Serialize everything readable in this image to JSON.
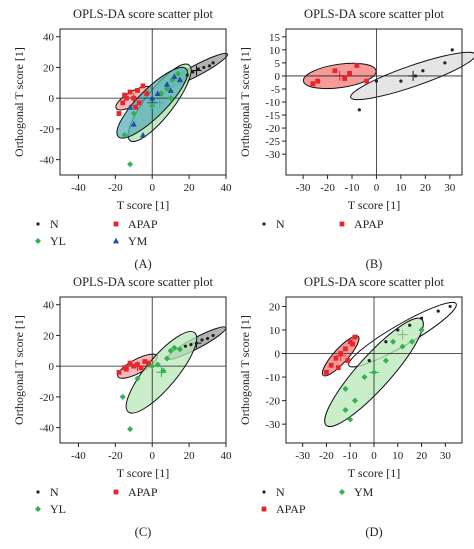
{
  "chart_data": [
    {
      "panel_label": "(A)",
      "type": "scatter",
      "title": "OPLS-DA score scatter plot",
      "xlabel": "T score [1]",
      "ylabel": "Orthogonal T score [1]",
      "xlim": [
        -50,
        40
      ],
      "ylim": [
        -50,
        45
      ],
      "xticks": [
        -40,
        -20,
        0,
        20,
        40
      ],
      "yticks": [
        -40,
        -20,
        0,
        20,
        40
      ],
      "legend": [
        "N",
        "APAP",
        "YL",
        "YM"
      ],
      "series": [
        {
          "name": "N",
          "color": "#222222",
          "marker": "dot",
          "points": [
            [
              19,
              15
            ],
            [
              22,
              17
            ],
            [
              25,
              19
            ],
            [
              28,
              20
            ],
            [
              31,
              21
            ],
            [
              33,
              23
            ]
          ],
          "ellipse": {
            "cx": 24,
            "cy": 18,
            "rx": 19,
            "ry": 3.5,
            "angle": 28,
            "fill": "#9a9a9a"
          }
        },
        {
          "name": "APAP",
          "color": "#e8262a",
          "marker": "square",
          "points": [
            [
              -18,
              -10
            ],
            [
              -16,
              -3
            ],
            [
              -14,
              0
            ],
            [
              -12,
              4
            ],
            [
              -10,
              0
            ],
            [
              -8,
              5
            ],
            [
              -7,
              -3
            ],
            [
              -5,
              8
            ],
            [
              -3,
              3
            ],
            [
              -15,
              2
            ],
            [
              -9,
              -6
            ]
          ],
          "ellipse": {
            "cx": -10,
            "cy": 0,
            "rx": 11,
            "ry": 4.5,
            "angle": 30,
            "fill": "#f8a0a0"
          }
        },
        {
          "name": "YL",
          "color": "#2fb34a",
          "marker": "diamond",
          "points": [
            [
              -15,
              -24
            ],
            [
              -12,
              -43
            ],
            [
              -10,
              -10
            ],
            [
              0,
              -5
            ],
            [
              5,
              3
            ],
            [
              8,
              6
            ],
            [
              11,
              12
            ],
            [
              14,
              16
            ],
            [
              10,
              0
            ]
          ],
          "ellipse": {
            "cx": 4,
            "cy": -3,
            "rx": 26,
            "ry": 9,
            "angle": 52,
            "fill": "#a8e0a8"
          }
        },
        {
          "name": "YM",
          "color": "#1f4ea3",
          "marker": "triangle",
          "points": [
            [
              -12,
              -6
            ],
            [
              -10,
              -17
            ],
            [
              -5,
              -24
            ],
            [
              0,
              0
            ],
            [
              3,
              3
            ],
            [
              8,
              9
            ],
            [
              10,
              5
            ],
            [
              12,
              14
            ],
            [
              15,
              12
            ]
          ],
          "ellipse": {
            "cx": 0,
            "cy": -3,
            "rx": 26,
            "ry": 9,
            "angle": 45,
            "fill": "#5ab0ba"
          }
        }
      ]
    },
    {
      "panel_label": "(B)",
      "type": "scatter",
      "title": "OPLS-DA score scatter plot",
      "xlabel": "T score [1]",
      "ylabel": "Orthogonal T score [1]",
      "xlim": [
        -37,
        35
      ],
      "ylim": [
        -38,
        18
      ],
      "xticks": [
        -30,
        -20,
        -10,
        0,
        10,
        20,
        30
      ],
      "yticks": [
        -30,
        -25,
        -20,
        -15,
        -10,
        -5,
        0,
        5,
        10,
        15
      ],
      "legend": [
        "N",
        "APAP"
      ],
      "series": [
        {
          "name": "N",
          "color": "#222222",
          "marker": "dot",
          "points": [
            [
              -7,
              -13
            ],
            [
              0,
              -2
            ],
            [
              10,
              -2
            ],
            [
              16,
              0
            ],
            [
              19,
              2
            ],
            [
              28,
              5
            ],
            [
              31,
              10
            ]
          ],
          "ellipse": {
            "cx": 15,
            "cy": 0,
            "rx": 27,
            "ry": 4,
            "angle": 19,
            "fill": "#dcdcdc"
          }
        },
        {
          "name": "APAP",
          "color": "#e8262a",
          "marker": "square",
          "points": [
            [
              -26,
              -3
            ],
            [
              -24,
              -2
            ],
            [
              -17,
              2
            ],
            [
              -13,
              -1
            ],
            [
              -11,
              1
            ],
            [
              -8,
              4
            ],
            [
              -4,
              -2
            ]
          ],
          "ellipse": {
            "cx": -15,
            "cy": 0,
            "rx": 15,
            "ry": 4.5,
            "angle": 8,
            "fill": "#f47878"
          }
        }
      ]
    },
    {
      "panel_label": "(C)",
      "type": "scatter",
      "title": "OPLS-DA score scatter plot",
      "xlabel": "T score [1]",
      "ylabel": "Orthogonal T score [1]",
      "xlim": [
        -50,
        40
      ],
      "ylim": [
        -50,
        45
      ],
      "xticks": [
        -40,
        -20,
        0,
        20,
        40
      ],
      "yticks": [
        -40,
        -20,
        0,
        20,
        40
      ],
      "legend": [
        "N",
        "APAP",
        "YL"
      ],
      "series": [
        {
          "name": "N",
          "color": "#222222",
          "marker": "dot",
          "points": [
            [
              18,
              13
            ],
            [
              21,
              14
            ],
            [
              24,
              15
            ],
            [
              27,
              17
            ],
            [
              30,
              18
            ],
            [
              33,
              20
            ]
          ],
          "ellipse": {
            "cx": 24,
            "cy": 15,
            "rx": 18,
            "ry": 3.5,
            "angle": 28,
            "fill": "#9a9a9a"
          }
        },
        {
          "name": "APAP",
          "color": "#e8262a",
          "marker": "square",
          "points": [
            [
              -18,
              -4
            ],
            [
              -15,
              -1
            ],
            [
              -12,
              2
            ],
            [
              -10,
              0
            ],
            [
              -8,
              1
            ],
            [
              -6,
              -1
            ],
            [
              -4,
              3
            ],
            [
              -2,
              2
            ],
            [
              -14,
              -2
            ]
          ],
          "ellipse": {
            "cx": -8,
            "cy": 0,
            "rx": 12,
            "ry": 4.5,
            "angle": 28,
            "fill": "#f8a0a0"
          }
        },
        {
          "name": "YL",
          "color": "#2fb34a",
          "marker": "diamond",
          "points": [
            [
              -16,
              -20
            ],
            [
              -12,
              -41
            ],
            [
              -8,
              -8
            ],
            [
              0,
              0
            ],
            [
              3,
              1
            ],
            [
              8,
              5
            ],
            [
              10,
              10
            ],
            [
              12,
              12
            ],
            [
              15,
              11
            ],
            [
              6,
              -3
            ]
          ],
          "ellipse": {
            "cx": 5,
            "cy": -4,
            "rx": 28,
            "ry": 10,
            "angle": 50,
            "fill": "#b8e8b8"
          }
        }
      ]
    },
    {
      "panel_label": "(D)",
      "type": "scatter",
      "title": "OPLS-DA score scatter plot",
      "xlabel": "T score [1]",
      "ylabel": "Orthogonal T score [1]",
      "xlim": [
        -37,
        37
      ],
      "ylim": [
        -38,
        24
      ],
      "xticks": [
        -30,
        -20,
        -10,
        0,
        10,
        20,
        30
      ],
      "yticks": [
        -30,
        -20,
        -10,
        0,
        10,
        20
      ],
      "legend": [
        "N",
        "YM",
        "APAP"
      ],
      "series": [
        {
          "name": "N",
          "color": "#222222",
          "marker": "dot",
          "points": [
            [
              -2,
              -3
            ],
            [
              5,
              5
            ],
            [
              10,
              10
            ],
            [
              15,
              12
            ],
            [
              20,
              15
            ],
            [
              27,
              18
            ],
            [
              32,
              20
            ]
          ],
          "ellipse": {
            "cx": 12,
            "cy": 8,
            "rx": 26,
            "ry": 4.5,
            "angle": 30,
            "fill": "#ffffff"
          }
        },
        {
          "name": "APAP",
          "color": "#e8262a",
          "marker": "square",
          "points": [
            [
              -20,
              -8
            ],
            [
              -18,
              -5
            ],
            [
              -16,
              -2
            ],
            [
              -15,
              -6
            ],
            [
              -14,
              0
            ],
            [
              -12,
              2
            ],
            [
              -11,
              -3
            ],
            [
              -10,
              5
            ],
            [
              -9,
              4
            ],
            [
              -8,
              7
            ]
          ],
          "ellipse": {
            "cx": -14,
            "cy": -1,
            "rx": 11,
            "ry": 3,
            "angle": 48,
            "fill": "#f47878"
          }
        },
        {
          "name": "YM",
          "color": "#2fb34a",
          "marker": "diamond",
          "points": [
            [
              -10,
              -28
            ],
            [
              -12,
              -24
            ],
            [
              -8,
              -20
            ],
            [
              -12,
              -15
            ],
            [
              -4,
              -10
            ],
            [
              0,
              -8
            ],
            [
              5,
              -3
            ],
            [
              8,
              5
            ],
            [
              12,
              3
            ],
            [
              16,
              5
            ],
            [
              20,
              10
            ]
          ],
          "ellipse": {
            "cx": 0,
            "cy": -8,
            "rx": 30,
            "ry": 7,
            "angle": 48,
            "fill": "#b8e8b8"
          }
        }
      ]
    }
  ]
}
